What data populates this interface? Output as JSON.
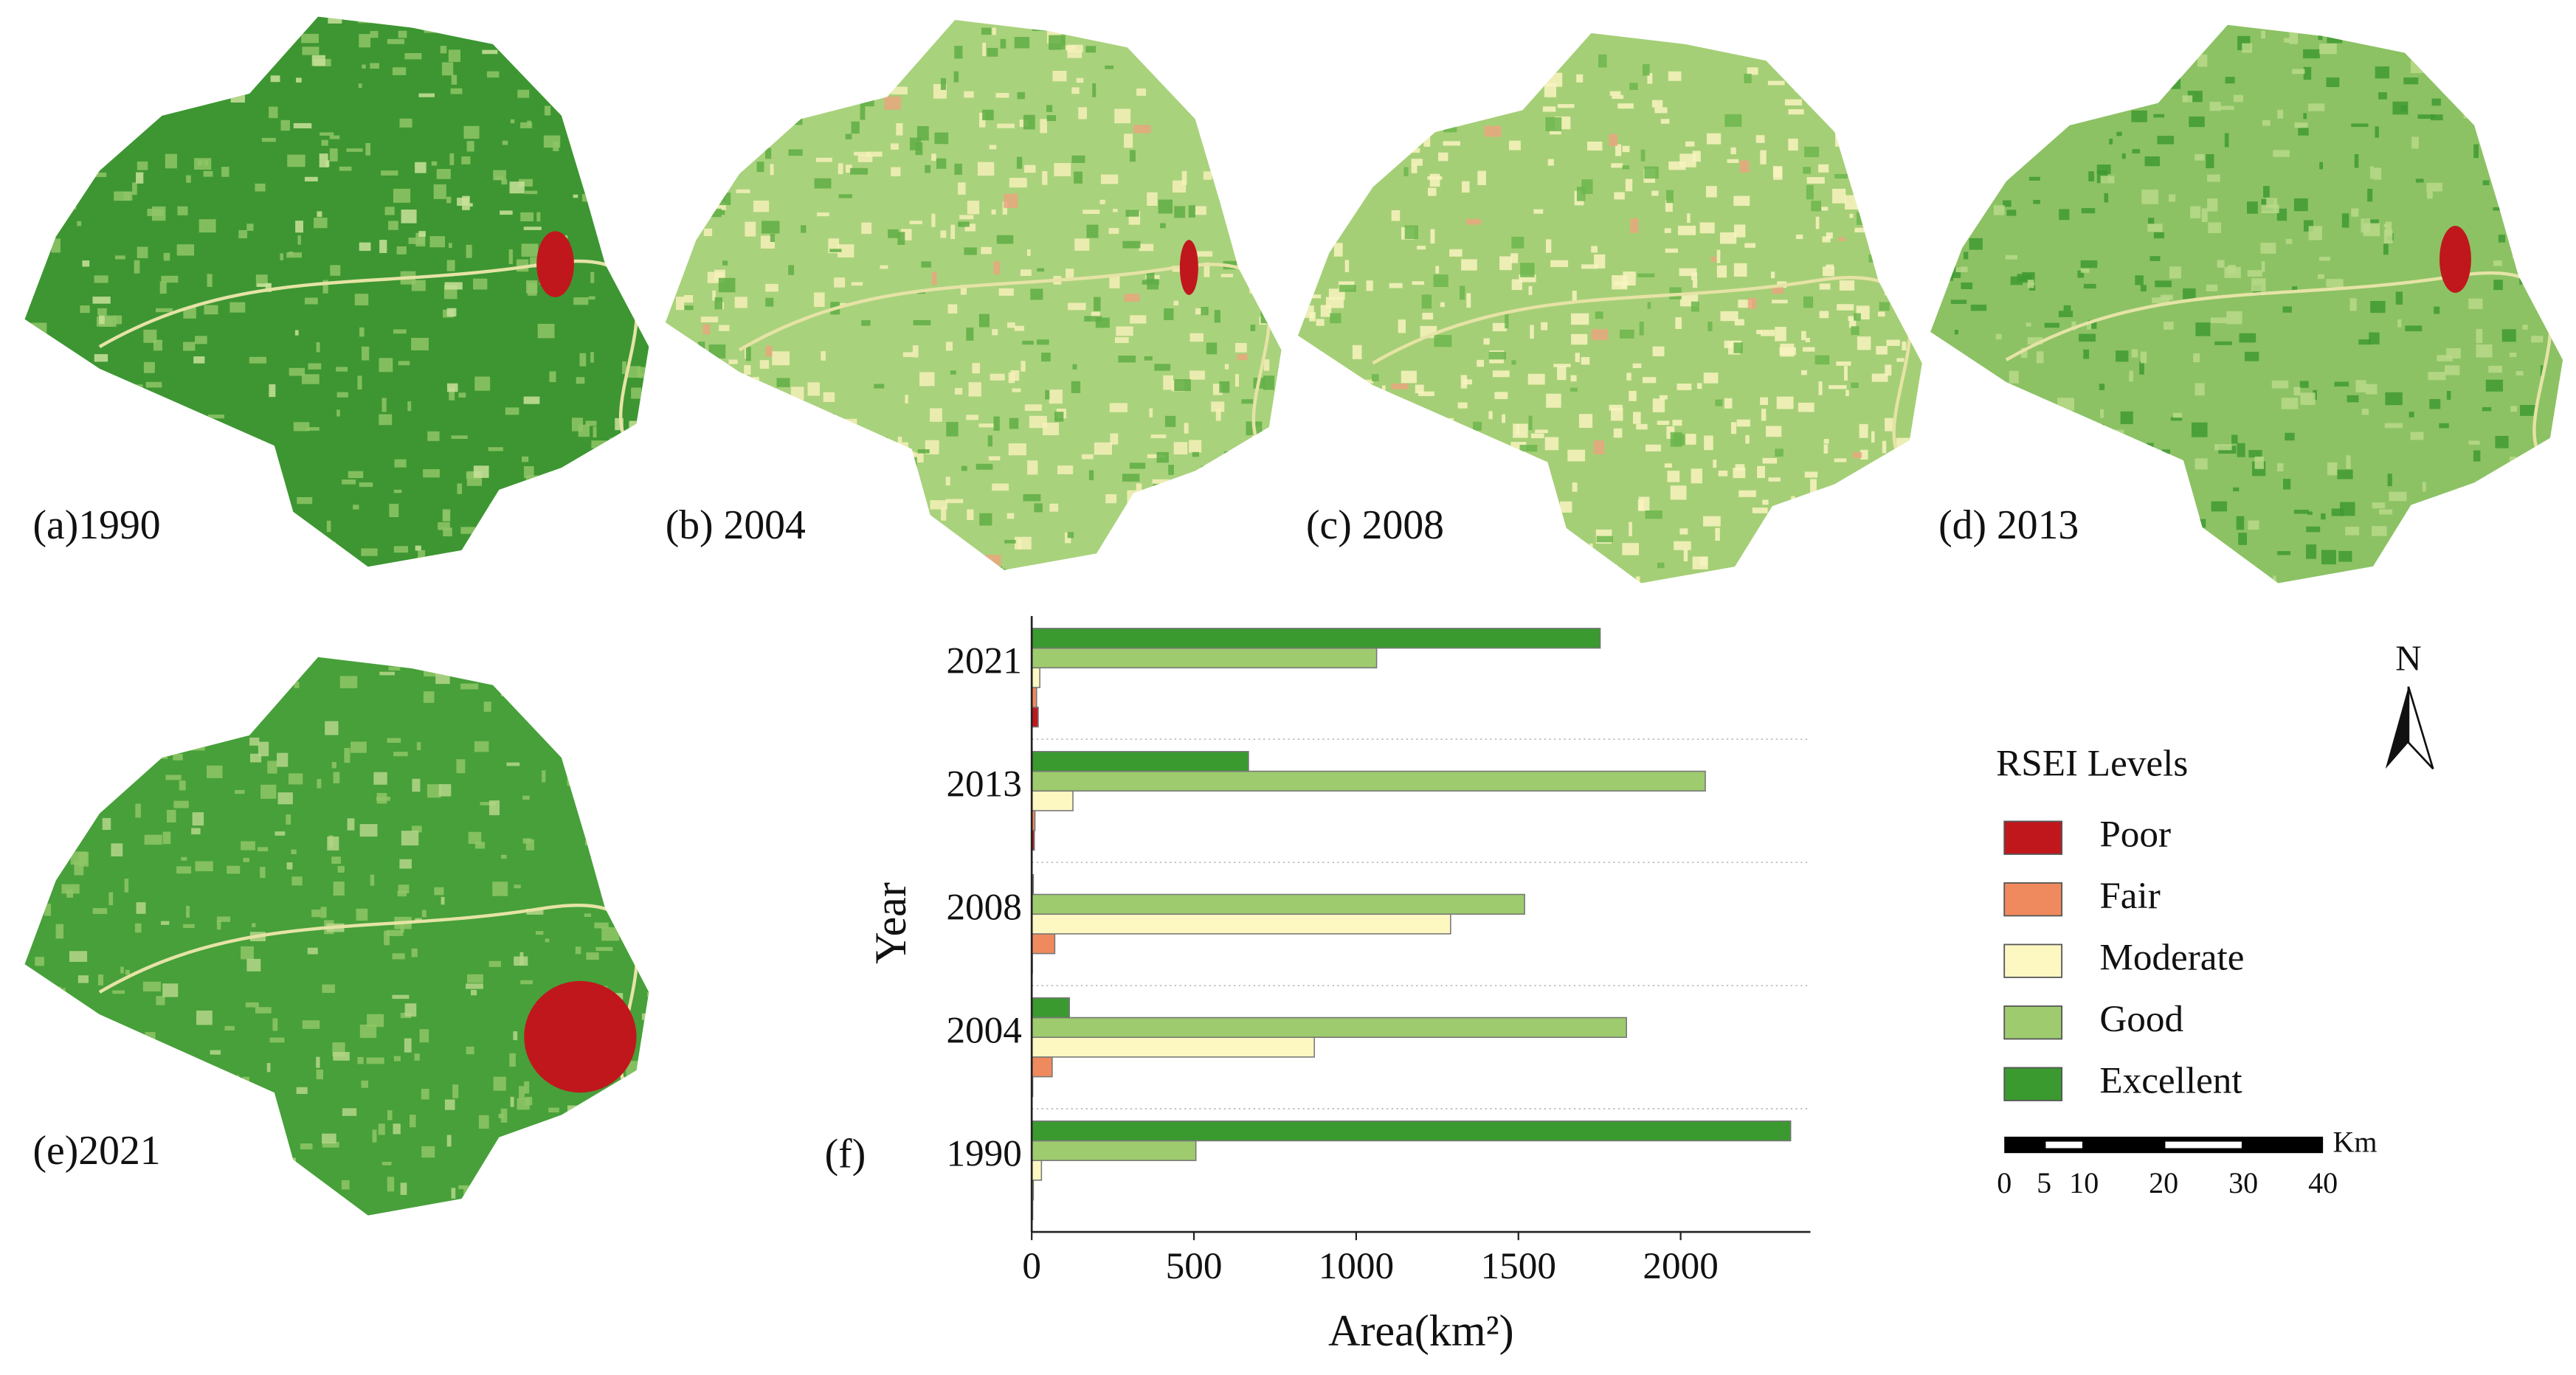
{
  "panels": [
    "(a)1990",
    "(b) 2004",
    "(c) 2008",
    "(d) 2013",
    "(e)2021"
  ],
  "chart_data": {
    "type": "barh",
    "panel_label": "(f)",
    "x_label": "Area(km²)",
    "y_label": "Year",
    "categories": [
      "1990",
      "2004",
      "2008",
      "2013",
      "2021"
    ],
    "series": [
      {
        "name": "Poor",
        "color": "#c0171d",
        "values": [
          3,
          3,
          2,
          8,
          20
        ]
      },
      {
        "name": "Fair",
        "color": "#ef8a5e",
        "values": [
          5,
          63,
          71,
          10,
          15
        ]
      },
      {
        "name": "Moderate",
        "color": "#fdf7c2",
        "values": [
          30,
          871,
          1291,
          127,
          25
        ]
      },
      {
        "name": "Good",
        "color": "#9ecb6e",
        "values": [
          506,
          1833,
          1519,
          2076,
          1063
        ]
      },
      {
        "name": "Excellent",
        "color": "#3a9a2f",
        "values": [
          2339,
          116,
          5,
          668,
          1752
        ]
      }
    ],
    "xlim": [
      0,
      2400
    ],
    "xticks": [
      0,
      500,
      1000,
      1500,
      2000
    ],
    "legend_title": "RSEI Levels"
  },
  "north": "N",
  "scale_bar": {
    "unit": "Km",
    "ticks": [
      0,
      5,
      10,
      20,
      30,
      40
    ]
  }
}
